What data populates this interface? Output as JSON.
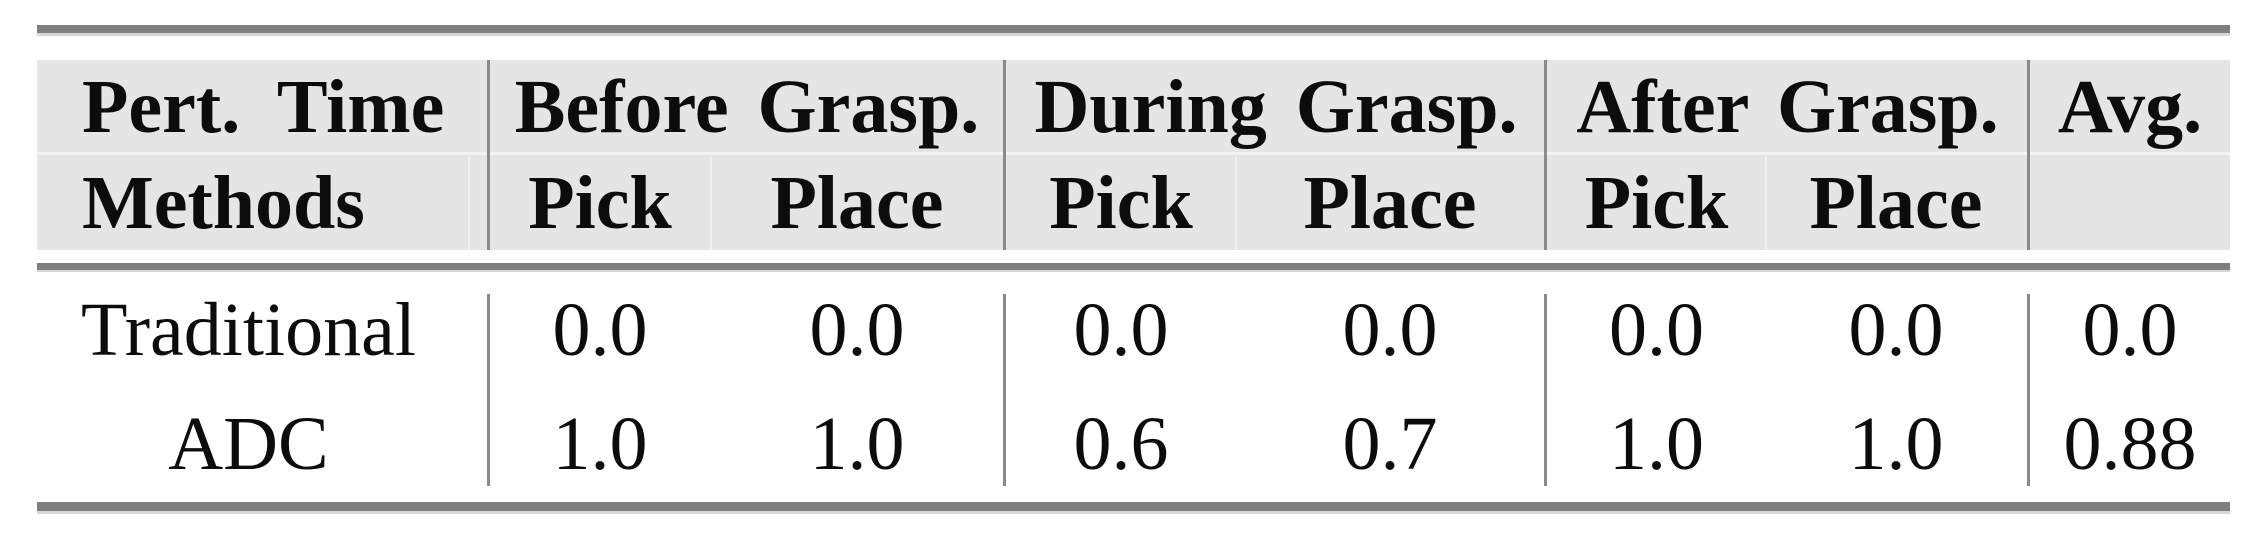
{
  "table": {
    "header": {
      "col1_row1": "Pert.  Time",
      "col1_row2": "Methods",
      "groups": [
        {
          "label": "Before Grasp.",
          "sub": [
            "Pick",
            "Place"
          ]
        },
        {
          "label": "During Grasp.",
          "sub": [
            "Pick",
            "Place"
          ]
        },
        {
          "label": "After Grasp.",
          "sub": [
            "Pick",
            "Place"
          ]
        }
      ],
      "avg_label": "Avg."
    },
    "rows": [
      {
        "method": "Traditional",
        "values": [
          "0.0",
          "0.0",
          "0.0",
          "0.0",
          "0.0",
          "0.0"
        ],
        "avg": "0.0"
      },
      {
        "method": "ADC",
        "values": [
          "1.0",
          "1.0",
          "0.6",
          "0.7",
          "1.0",
          "1.0"
        ],
        "avg": "0.88"
      }
    ],
    "colors": {
      "header_bg": "#e5e5e5",
      "rule": "#7f7f7f",
      "separator": "#8a8a8a",
      "text": "#0c0c0c"
    }
  }
}
